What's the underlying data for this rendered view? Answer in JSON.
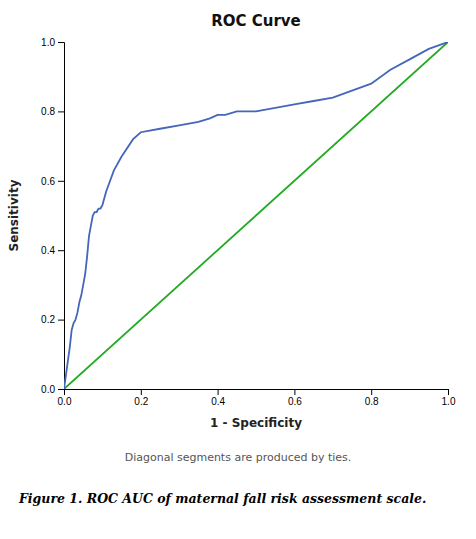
{
  "chart_data": {
    "type": "line",
    "title": "ROC Curve",
    "x_label": "1 - Specificity",
    "y_label": "Sensitivity",
    "annotations": [
      "Diagonal segments are produced by ties.",
      "Figure 1. ROC AUC of maternal fall risk assessment scale."
    ],
    "series": [
      {
        "color": "#22aa22",
        "x": [
          0,
          1
        ],
        "values": [
          0,
          1
        ]
      },
      {
        "color": "#4466bb",
        "x": [
          0.0,
          0.005,
          0.01,
          0.015,
          0.02,
          0.025,
          0.03,
          0.035,
          0.04,
          0.045,
          0.05,
          0.055,
          0.06,
          0.065,
          0.07,
          0.075,
          0.08,
          0.085,
          0.09,
          0.095,
          0.1,
          0.11,
          0.13,
          0.15,
          0.18,
          0.2,
          0.25,
          0.3,
          0.35,
          0.38,
          0.4,
          0.42,
          0.45,
          0.5,
          0.55,
          0.6,
          0.65,
          0.7,
          0.75,
          0.8,
          0.85,
          0.9,
          0.95,
          1.0
        ],
        "values": [
          0.0,
          0.04,
          0.08,
          0.12,
          0.17,
          0.19,
          0.2,
          0.22,
          0.25,
          0.27,
          0.3,
          0.33,
          0.38,
          0.44,
          0.47,
          0.5,
          0.51,
          0.51,
          0.52,
          0.52,
          0.53,
          0.57,
          0.63,
          0.67,
          0.72,
          0.74,
          0.75,
          0.76,
          0.77,
          0.78,
          0.79,
          0.79,
          0.8,
          0.8,
          0.81,
          0.82,
          0.83,
          0.84,
          0.86,
          0.88,
          0.92,
          0.95,
          0.98,
          1.0
        ]
      }
    ],
    "xlim": [
      0.0,
      1.0
    ],
    "ylim": [
      0.0,
      1.0
    ],
    "xticks": [
      {
        "value": 0.0,
        "label": "0.0"
      },
      0.2,
      0.4,
      0.6,
      0.8,
      {
        "value": 1.0,
        "label": "1.0"
      }
    ],
    "yticks": [
      {
        "value": 0.0,
        "label": "0.0"
      },
      0.2,
      0.4,
      0.6,
      0.8,
      {
        "value": 1.0,
        "label": "1.0"
      }
    ],
    "grid": false
  }
}
